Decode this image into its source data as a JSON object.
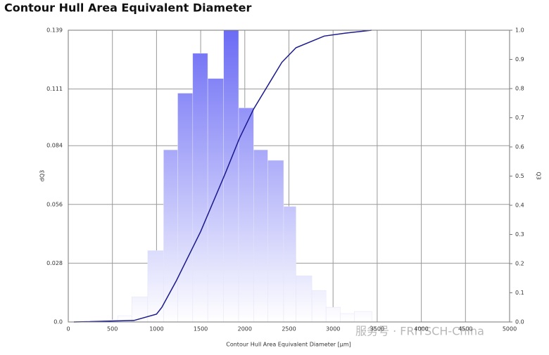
{
  "chart_data": {
    "type": "histogram",
    "title": "Contour Hull Area Equivalent Diameter",
    "xlabel": "Contour Hull Area Equivalent Diameter [µm]",
    "ylabel": "dQ3",
    "y2label": "Q3",
    "watermark": "服务号 · FRITSCH-China",
    "bins": [
      400,
      560,
      720,
      900,
      1080,
      1240,
      1410,
      1580,
      1760,
      1930,
      2100,
      2260,
      2440,
      2580,
      2760,
      2920,
      3080,
      3240,
      3440
    ],
    "values": [
      0.001,
      0.003,
      0.012,
      0.034,
      0.082,
      0.109,
      0.128,
      0.116,
      0.139,
      0.102,
      0.082,
      0.077,
      0.055,
      0.022,
      0.015,
      0.007,
      0.004,
      0.005
    ],
    "color": "#6b6bf5",
    "line": {
      "axis": "y2",
      "color": "#1a1a8c",
      "x": [
        64,
        743,
        1000,
        1060,
        1222,
        1500,
        1780,
        1940,
        2100,
        2420,
        2580,
        2900,
        3140,
        3435
      ],
      "values": [
        0,
        0.005,
        0.027,
        0.05,
        0.14,
        0.31,
        0.51,
        0.63,
        0.73,
        0.89,
        0.94,
        0.98,
        0.99,
        1.0
      ]
    },
    "xlim": [
      0,
      5000
    ],
    "xticks": [
      0,
      500,
      1000,
      1500,
      2000,
      2500,
      3000,
      3500,
      4000,
      4500,
      5000
    ],
    "ylim": [
      0,
      0.139
    ],
    "yticks": [
      {
        "value": 0,
        "label": "0.0"
      },
      0.028,
      0.056,
      0.084,
      0.111,
      0.139
    ],
    "y2lim": [
      0,
      1
    ],
    "y2ticks": [
      {
        "value": 0,
        "label": "0.0"
      },
      0.1,
      0.2,
      0.3,
      0.4,
      0.5,
      0.6,
      0.7,
      0.8,
      0.9,
      {
        "value": 1,
        "label": "1.0"
      }
    ],
    "grid": true
  }
}
